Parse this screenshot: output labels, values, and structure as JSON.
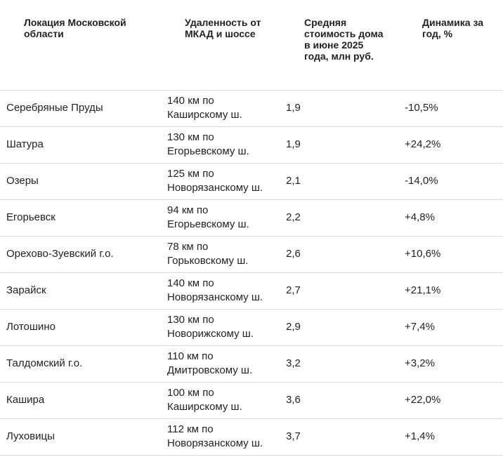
{
  "table": {
    "headers": [
      "Локация Московской области",
      "Удаленность от МКАД и шоссе",
      "Средняя стоимость дома в июне 2025 года, млн руб.",
      "Динамика за год, %"
    ],
    "rows": [
      {
        "location": "Серебряные Пруды",
        "distance_1": "140 км по",
        "distance_2": "Каширскому ш.",
        "price": "1,9",
        "change": "-10,5%"
      },
      {
        "location": "Шатура",
        "distance_1": "130 км по",
        "distance_2": "Егорьевскому ш.",
        "price": "1,9",
        "change": "+24,2%"
      },
      {
        "location": "Озеры",
        "distance_1": "125 км по",
        "distance_2": "Новорязанскому ш.",
        "price": "2,1",
        "change": "-14,0%"
      },
      {
        "location": "Егорьевск",
        "distance_1": "94 км по",
        "distance_2": "Егорьевскому ш.",
        "price": "2,2",
        "change": "+4,8%"
      },
      {
        "location": "Орехово-Зуевский г.о.",
        "distance_1": "78 км по",
        "distance_2": "Горьковскому ш.",
        "price": "2,6",
        "change": "+10,6%"
      },
      {
        "location": "Зарайск",
        "distance_1": "140 км по",
        "distance_2": "Новорязанскому ш.",
        "price": "2,7",
        "change": "+21,1%"
      },
      {
        "location": "Лотошино",
        "distance_1": "130 км по",
        "distance_2": "Новорижскому ш.",
        "price": "2,9",
        "change": "+7,4%"
      },
      {
        "location": "Талдомский г.о.",
        "distance_1": "110 км по",
        "distance_2": "Дмитровскому ш.",
        "price": "3,2",
        "change": "+3,2%"
      },
      {
        "location": "Кашира",
        "distance_1": "100 км по",
        "distance_2": "Каширскому ш.",
        "price": "3,6",
        "change": "+22,0%"
      },
      {
        "location": "Луховицы",
        "distance_1": "112 км по",
        "distance_2": "Новорязанскому ш.",
        "price": "3,7",
        "change": "+1,4%"
      }
    ]
  },
  "colors": {
    "text": "#222222",
    "divider": "#d9d9d9",
    "background": "#ffffff"
  }
}
